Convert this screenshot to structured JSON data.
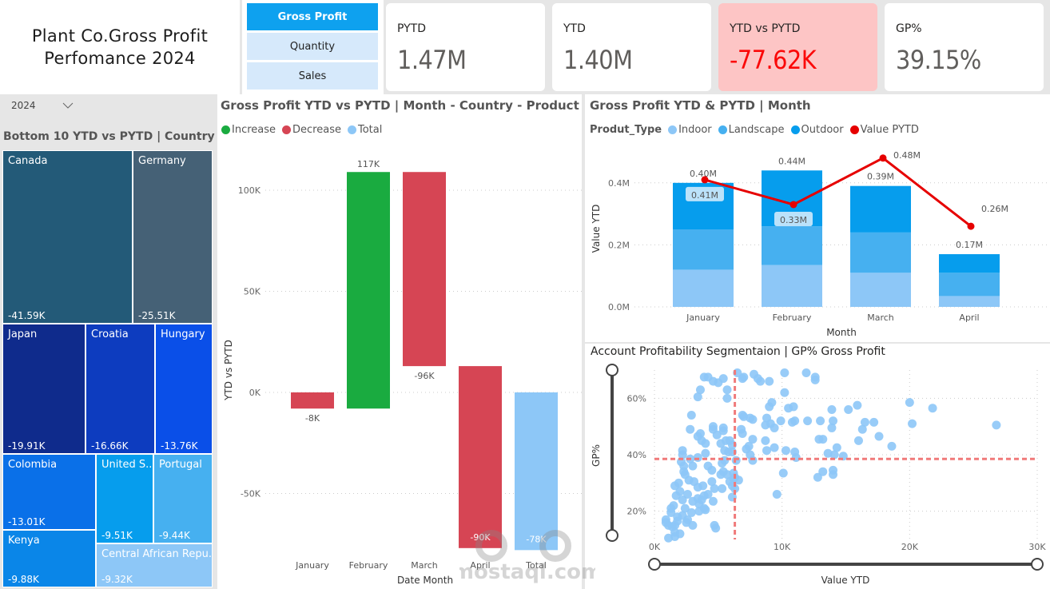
{
  "header": {
    "title_line1": "Plant Co.Gross Profit",
    "title_line2": "Perfomance 2024"
  },
  "metric_selector": {
    "options": [
      {
        "label": "Gross Profit",
        "active": true
      },
      {
        "label": "Quantity",
        "active": false
      },
      {
        "label": "Sales",
        "active": false
      }
    ]
  },
  "kpi_cards": [
    {
      "label": "PYTD",
      "value": "1.47M",
      "status": "neutral"
    },
    {
      "label": "YTD",
      "value": "1.40M",
      "status": "neutral"
    },
    {
      "label": "YTD vs PYTD",
      "value": "-77.62K",
      "status": "negative"
    },
    {
      "label": "GP%",
      "value": "39.15%",
      "status": "neutral"
    }
  ],
  "year_slicer": {
    "value": "2024",
    "icon": "chevron-down-icon"
  },
  "treemap": {
    "title": "Bottom 10 YTD vs PYTD | Country",
    "items": [
      {
        "name": "Canada",
        "value": "-41.59K",
        "color": "#235a78"
      },
      {
        "name": "Germany",
        "value": "-25.51K",
        "color": "#456176"
      },
      {
        "name": "Japan",
        "value": "-19.91K",
        "color": "#0f2b8c"
      },
      {
        "name": "Croatia",
        "value": "-16.66K",
        "color": "#0d3cbf"
      },
      {
        "name": "Hungary",
        "value": "-13.76K",
        "color": "#0a4fe8"
      },
      {
        "name": "Colombia",
        "value": "-13.01K",
        "color": "#0a70e8"
      },
      {
        "name": "United S...",
        "value": "-9.51K",
        "color": "#069ded"
      },
      {
        "name": "Portugal",
        "value": "-9.44K",
        "color": "#46b0f0"
      },
      {
        "name": "Kenya",
        "value": "-9.88K",
        "color": "#0a86e8"
      },
      {
        "name": "Central African Repu...",
        "value": "-9.32K",
        "color": "#8dc7f7"
      }
    ]
  },
  "waterfall": {
    "title": "Gross Profit YTD vs PYTD | Month - Country - Product",
    "legend": [
      {
        "label": "Increase",
        "color": "#1aab40"
      },
      {
        "label": "Decrease",
        "color": "#d64554"
      },
      {
        "label": "Total",
        "color": "#8dc7f7"
      }
    ]
  },
  "combo": {
    "title": "Gross Profit YTD & PYTD | Month",
    "legend_title": "Produt_Type",
    "legend": [
      {
        "label": "Indoor",
        "color": "#8dc7f7"
      },
      {
        "label": "Landscape",
        "color": "#46b0f0"
      },
      {
        "label": "Outdoor",
        "color": "#069ded"
      },
      {
        "label": "Value PYTD",
        "color": "#e60000"
      }
    ]
  },
  "scatter": {
    "title": "Account Profitability Segmentaion | GP% Gross Profit"
  },
  "chart_data": [
    {
      "type": "bar",
      "subtype": "waterfall",
      "title": "Gross Profit YTD vs PYTD | Month - Country - Product",
      "xlabel": "Date Month",
      "ylabel": "YTD vs PYTD",
      "categories": [
        "January",
        "February",
        "March",
        "April",
        "Total"
      ],
      "values": [
        -8,
        117,
        -96,
        -90,
        -78
      ],
      "kinds": [
        "decrease",
        "increase",
        "decrease",
        "decrease",
        "total"
      ],
      "data_labels": [
        "-8K",
        "117K",
        "-96K",
        "-90K",
        "-78K"
      ],
      "yticks": [
        "100K",
        "50K",
        "0K",
        "-50K"
      ],
      "ytick_values": [
        100,
        50,
        0,
        -50
      ],
      "ylim": [
        -78,
        117
      ],
      "units": "K",
      "grid": true,
      "legend": "top-left"
    },
    {
      "type": "bar",
      "subtype": "stacked-column-with-line",
      "title": "Gross Profit YTD & PYTD | Month",
      "xlabel": "Month",
      "ylabel": "Value YTD",
      "categories": [
        "January",
        "February",
        "March",
        "April"
      ],
      "series": [
        {
          "name": "Indoor",
          "values": [
            0.12,
            0.135,
            0.11,
            0.035
          ]
        },
        {
          "name": "Landscape",
          "values": [
            0.13,
            0.125,
            0.13,
            0.075
          ]
        },
        {
          "name": "Outdoor",
          "values": [
            0.15,
            0.18,
            0.15,
            0.06
          ]
        },
        {
          "name": "Value PYTD",
          "kind": "line",
          "values": [
            0.41,
            0.33,
            0.48,
            0.26
          ]
        }
      ],
      "bar_totals": [
        "0.40M",
        "0.44M",
        "0.39M",
        "0.17M"
      ],
      "line_labels": [
        "0.41M",
        "0.33M",
        "0.48M",
        "0.26M"
      ],
      "yticks": [
        "0.0M",
        "0.2M",
        "0.4M"
      ],
      "ytick_values": [
        0,
        0.2,
        0.4
      ],
      "ylim": [
        0,
        0.5
      ],
      "units": "M",
      "grid": true,
      "legend": "top-left"
    },
    {
      "type": "scatter",
      "title": "Account Profitability Segmentaion | GP% Gross Profit",
      "xlabel": "Value YTD",
      "ylabel": "GP%",
      "xticks": [
        "0K",
        "10K",
        "20K",
        "30K"
      ],
      "xtick_values": [
        0,
        10,
        20,
        30
      ],
      "yticks": [
        "20%",
        "40%",
        "60%"
      ],
      "ytick_values": [
        20,
        40,
        60
      ],
      "xlim": [
        0,
        30
      ],
      "ylim": [
        10,
        70
      ],
      "reference_lines": {
        "x": 6.3,
        "y": 38.5
      },
      "points": [
        [
          3.9,
          67.5
        ],
        [
          4.2,
          67.5
        ],
        [
          4.6,
          66
        ],
        [
          5.0,
          65.5
        ],
        [
          5.4,
          67
        ],
        [
          5.7,
          63
        ],
        [
          5.7,
          60
        ],
        [
          3.6,
          63
        ],
        [
          3.4,
          60.5
        ],
        [
          6.5,
          69
        ],
        [
          6.9,
          67
        ],
        [
          7.0,
          67.5
        ],
        [
          7.8,
          68.5
        ],
        [
          8.3,
          66
        ],
        [
          8.1,
          67
        ],
        [
          9.0,
          66
        ],
        [
          10.2,
          69
        ],
        [
          11.9,
          69
        ],
        [
          12.6,
          67.5
        ],
        [
          12.6,
          66.5
        ],
        [
          10.2,
          62
        ],
        [
          9.2,
          58.5
        ],
        [
          9.0,
          57
        ],
        [
          10.5,
          56.5
        ],
        [
          10.9,
          57
        ],
        [
          9.9,
          52
        ],
        [
          10.8,
          51.5
        ],
        [
          11.0,
          52
        ],
        [
          12.0,
          52
        ],
        [
          13.0,
          52
        ],
        [
          14.0,
          52
        ],
        [
          13.9,
          56
        ],
        [
          15.2,
          56
        ],
        [
          15.9,
          57.5
        ],
        [
          16.5,
          51.5
        ],
        [
          17.2,
          51.5
        ],
        [
          16.3,
          49
        ],
        [
          17.6,
          46.5
        ],
        [
          16.0,
          45
        ],
        [
          20.0,
          58.5
        ],
        [
          21.8,
          56.5
        ],
        [
          20.2,
          51
        ],
        [
          26.8,
          50.5
        ],
        [
          18.6,
          43
        ],
        [
          14.3,
          42.5
        ],
        [
          13.2,
          45.5
        ],
        [
          12.9,
          45.5
        ],
        [
          13.9,
          49.5
        ],
        [
          13.6,
          40.5
        ],
        [
          14.1,
          40
        ],
        [
          14.8,
          39.5
        ],
        [
          10.3,
          41.5
        ],
        [
          11.0,
          41
        ],
        [
          11.1,
          39
        ],
        [
          10.1,
          33.5
        ],
        [
          9.4,
          42.5
        ],
        [
          9.4,
          49.5
        ],
        [
          9.1,
          51
        ],
        [
          8.7,
          50.5
        ],
        [
          8.8,
          53
        ],
        [
          8.7,
          45
        ],
        [
          8.8,
          41.5
        ],
        [
          7.7,
          45.5
        ],
        [
          7.5,
          53
        ],
        [
          7.7,
          52.5
        ],
        [
          6.9,
          54
        ],
        [
          7.0,
          53.5
        ],
        [
          6.8,
          49
        ],
        [
          6.9,
          47.5
        ],
        [
          7.4,
          43
        ],
        [
          7.2,
          42
        ],
        [
          7.5,
          40
        ],
        [
          7.7,
          38
        ],
        [
          14.0,
          34.5
        ],
        [
          14.0,
          33
        ],
        [
          13.2,
          34
        ],
        [
          12.8,
          32
        ],
        [
          9.6,
          26
        ],
        [
          2.9,
          54
        ],
        [
          2.8,
          49
        ],
        [
          3.4,
          46.5
        ],
        [
          3.6,
          47.5
        ],
        [
          4.6,
          50
        ],
        [
          4.6,
          49
        ],
        [
          5.4,
          49.5
        ],
        [
          5.4,
          48.5
        ],
        [
          4.9,
          47
        ],
        [
          5.2,
          44
        ],
        [
          5.6,
          45
        ],
        [
          5.9,
          45
        ],
        [
          6.1,
          43.5
        ],
        [
          5.8,
          41
        ],
        [
          5.5,
          41.5
        ],
        [
          6.1,
          41
        ],
        [
          4.0,
          44
        ],
        [
          3.7,
          45
        ],
        [
          4.0,
          40.5
        ],
        [
          3.4,
          39
        ],
        [
          2.8,
          38.5
        ],
        [
          2.2,
          41.5
        ],
        [
          2.2,
          40
        ],
        [
          2.1,
          37.5
        ],
        [
          2.3,
          36
        ],
        [
          2.3,
          34
        ],
        [
          3.0,
          36
        ],
        [
          4.2,
          36
        ],
        [
          4.5,
          34.5
        ],
        [
          5.3,
          37
        ],
        [
          5.5,
          38
        ],
        [
          5.2,
          33
        ],
        [
          5.7,
          33
        ],
        [
          6.2,
          33.5
        ],
        [
          6.3,
          32
        ],
        [
          6.6,
          31
        ],
        [
          5.9,
          30.5
        ],
        [
          6.1,
          29
        ],
        [
          6.3,
          28
        ],
        [
          6.1,
          25
        ],
        [
          5.3,
          28
        ],
        [
          4.7,
          28
        ],
        [
          4.5,
          30.5
        ],
        [
          3.8,
          29
        ],
        [
          3.4,
          28.5
        ],
        [
          3.1,
          30.5
        ],
        [
          2.7,
          31
        ],
        [
          2.4,
          33
        ],
        [
          1.9,
          30
        ],
        [
          1.6,
          29
        ],
        [
          2.0,
          27
        ],
        [
          1.7,
          25.5
        ],
        [
          2.2,
          24
        ],
        [
          2.6,
          26
        ],
        [
          3.0,
          23.5
        ],
        [
          3.4,
          24.5
        ],
        [
          3.7,
          24
        ],
        [
          3.9,
          25.5
        ],
        [
          4.2,
          26
        ],
        [
          4.6,
          23.5
        ],
        [
          3.5,
          22.5
        ],
        [
          3.9,
          21
        ],
        [
          4.0,
          20.5
        ],
        [
          3.5,
          20
        ],
        [
          2.9,
          19.5
        ],
        [
          2.4,
          21
        ],
        [
          1.5,
          22
        ],
        [
          1.3,
          21
        ],
        [
          1.3,
          19.5
        ],
        [
          1.8,
          18
        ],
        [
          2.2,
          18.5
        ],
        [
          2.6,
          17
        ],
        [
          3.0,
          15
        ],
        [
          2.5,
          16
        ],
        [
          1.8,
          16.5
        ],
        [
          1.6,
          15
        ],
        [
          1.4,
          14.5
        ],
        [
          1.1,
          15
        ],
        [
          0.9,
          16
        ],
        [
          0.9,
          17
        ],
        [
          1.6,
          12.5
        ],
        [
          2.0,
          12
        ],
        [
          1.6,
          11
        ],
        [
          1.1,
          10.5
        ],
        [
          4.7,
          15
        ],
        [
          4.8,
          14
        ],
        [
          6.2,
          31.5
        ],
        [
          6.4,
          38
        ],
        [
          5.4,
          34
        ]
      ]
    }
  ],
  "watermark": {
    "text": "mostaql.com"
  }
}
